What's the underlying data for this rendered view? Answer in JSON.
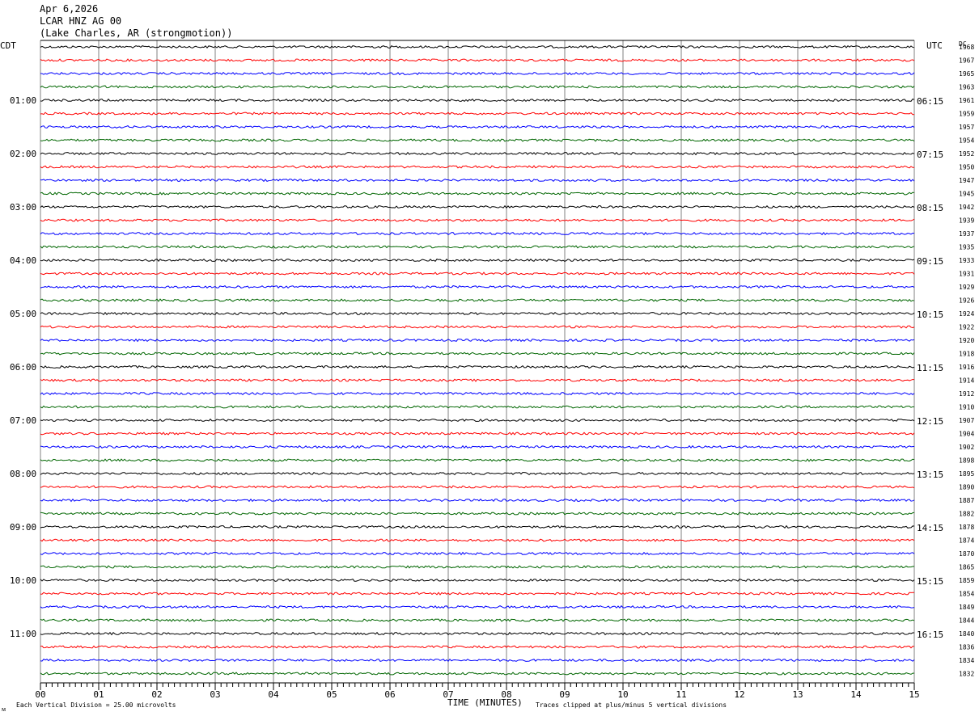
{
  "header": {
    "date": "Apr 6,2026",
    "station": "LCAR HNZ AG 00",
    "location": "(Lake Charles, AR (strongmotion))"
  },
  "left_axis_label": "CDT",
  "right_axis_label": "UTC",
  "dc_label": "DC",
  "footer": {
    "vertical_division": "Each Vertical Division =   25.00 microvolts",
    "xlabel": "TIME (MINUTES)",
    "clip_note": "Traces clipped at plus/minus 5 vertical divisions",
    "corner_mark": "ᴍ"
  },
  "colors": {
    "trace_cycle": [
      "#000000",
      "#ff0000",
      "#0000ff",
      "#006600"
    ],
    "grid": "#808080"
  },
  "chart_data": {
    "type": "line",
    "description_of_display": "helicorder",
    "xlabel": "TIME (MINUTES)",
    "xlim": [
      0,
      15
    ],
    "x_ticks": [
      "00",
      "01",
      "02",
      "03",
      "04",
      "05",
      "06",
      "07",
      "08",
      "09",
      "10",
      "11",
      "12",
      "13",
      "14",
      "15"
    ],
    "left_hour_labels": [
      "01:00",
      "02:00",
      "03:00",
      "04:00",
      "05:00",
      "06:00",
      "07:00",
      "08:00",
      "09:00",
      "10:00",
      "11:00"
    ],
    "right_hour_labels": [
      "06:15",
      "07:15",
      "08:15",
      "09:15",
      "10:15",
      "11:15",
      "12:15",
      "13:15",
      "14:15",
      "15:15",
      "16:15"
    ],
    "dc_offsets": [
      1968,
      1967,
      1965,
      1963,
      1961,
      1959,
      1957,
      1954,
      1952,
      1950,
      1947,
      1945,
      1942,
      1939,
      1937,
      1935,
      1933,
      1931,
      1929,
      1926,
      1924,
      1922,
      1920,
      1918,
      1916,
      1914,
      1912,
      1910,
      1907,
      1904,
      1902,
      1898,
      1895,
      1890,
      1887,
      1882,
      1878,
      1874,
      1870,
      1865,
      1859,
      1854,
      1849,
      1844,
      1840,
      1836,
      1834,
      1832
    ],
    "trace_count": 48,
    "minutes_per_trace": 15
  }
}
